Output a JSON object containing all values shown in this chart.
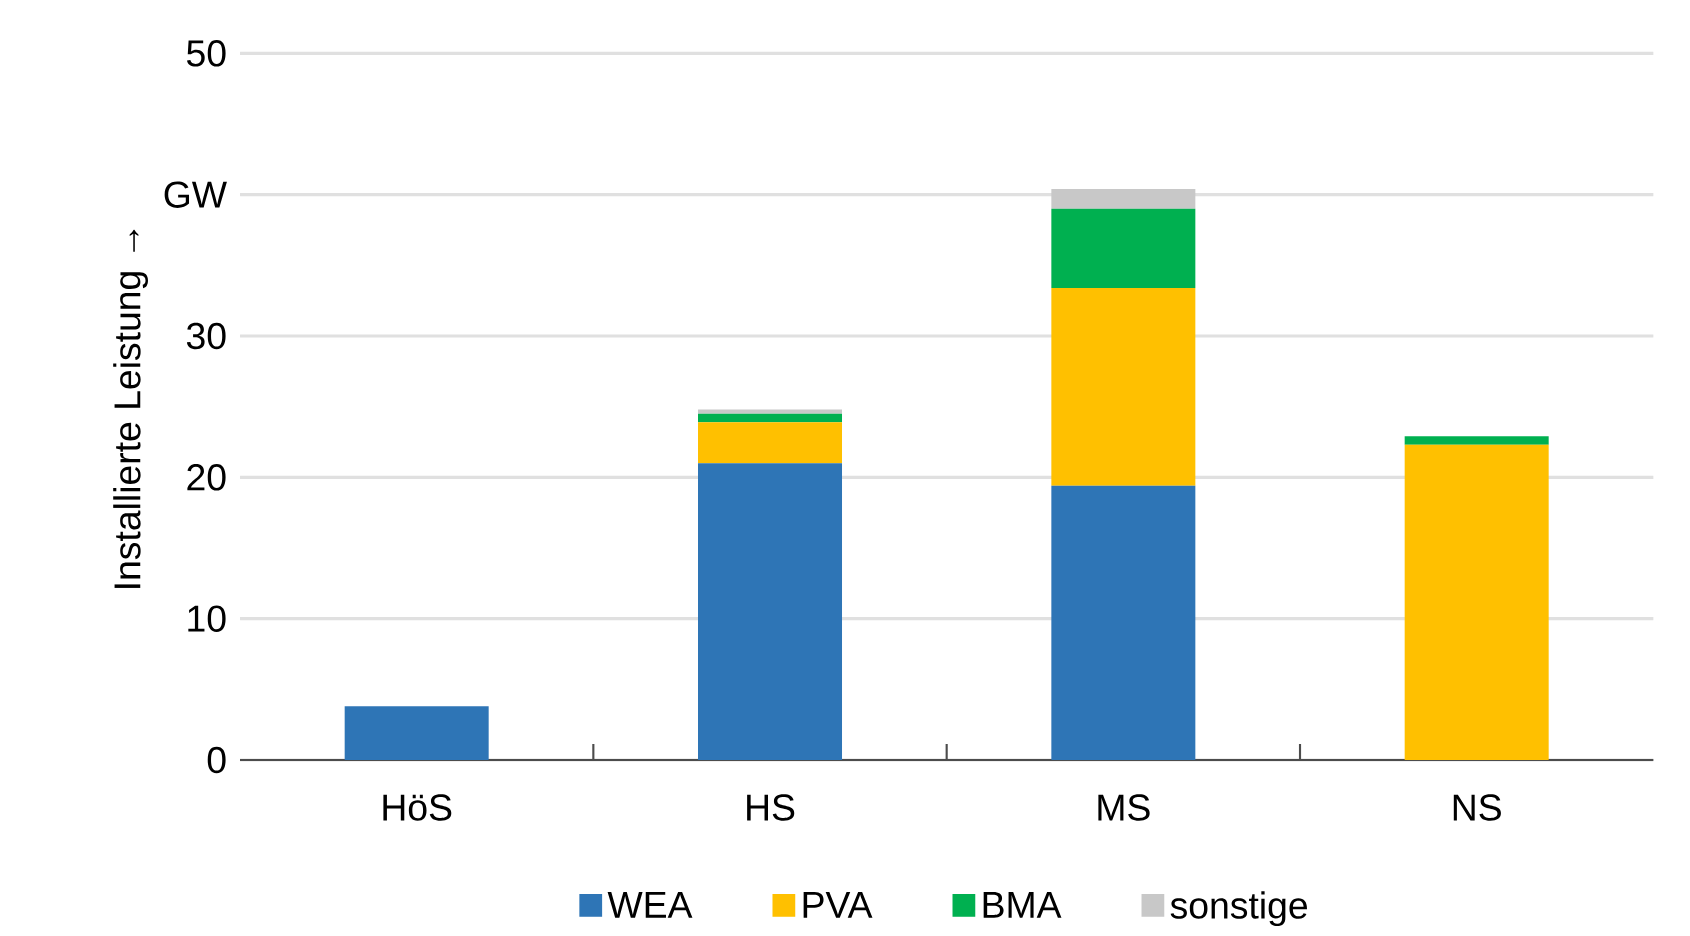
{
  "chart_data": {
    "type": "bar",
    "stacked": true,
    "ylabel": "Installierte Leistung →",
    "categories": [
      "HöS",
      "HS",
      "MS",
      "NS"
    ],
    "series": [
      {
        "name": "WEA",
        "color": "#2e75b6",
        "values": [
          3.8,
          21.0,
          19.4,
          0
        ]
      },
      {
        "name": "PVA",
        "color": "#ffc000",
        "values": [
          0,
          2.9,
          14.0,
          22.3
        ]
      },
      {
        "name": "BMA",
        "color": "#00b050",
        "values": [
          0,
          0.6,
          5.6,
          0.6
        ]
      },
      {
        "name": "sonstige",
        "color": "#c8c8c8",
        "values": [
          0,
          0.3,
          1.4,
          0
        ]
      }
    ],
    "ylim": [
      0,
      50
    ],
    "yticks": [
      0,
      10,
      20,
      {
        "value": 40,
        "label": "GW"
      },
      30,
      50
    ],
    "grid": "y",
    "legend": "bottom"
  }
}
